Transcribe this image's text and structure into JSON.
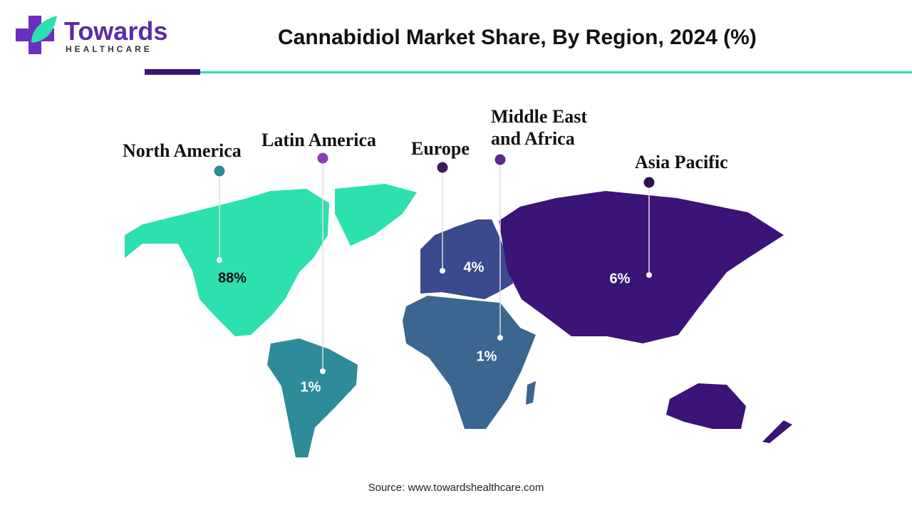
{
  "logo": {
    "name": "Towards",
    "tagline": "HEALTHCARE"
  },
  "chart_data": {
    "type": "map",
    "title": "Cannabidiol Market Share, By Region, 2024 (%)",
    "categories": [
      "North America",
      "Latin America",
      "Europe",
      "Middle East and Africa",
      "Asia Pacific"
    ],
    "values": [
      88,
      1,
      4,
      1,
      6
    ],
    "value_labels": [
      "88%",
      "1%",
      "4%",
      "1%",
      "6%"
    ],
    "colors": [
      "#2de0b0",
      "#2e8b9a",
      "#3a4a8c",
      "#3a6690",
      "#3b1478"
    ],
    "marker_colors": [
      "#2e8b9a",
      "#8a3dc0",
      "#3b1a60",
      "#5a2a90",
      "#2a1050"
    ],
    "source": "Source: www.towardshealthcare.com"
  }
}
